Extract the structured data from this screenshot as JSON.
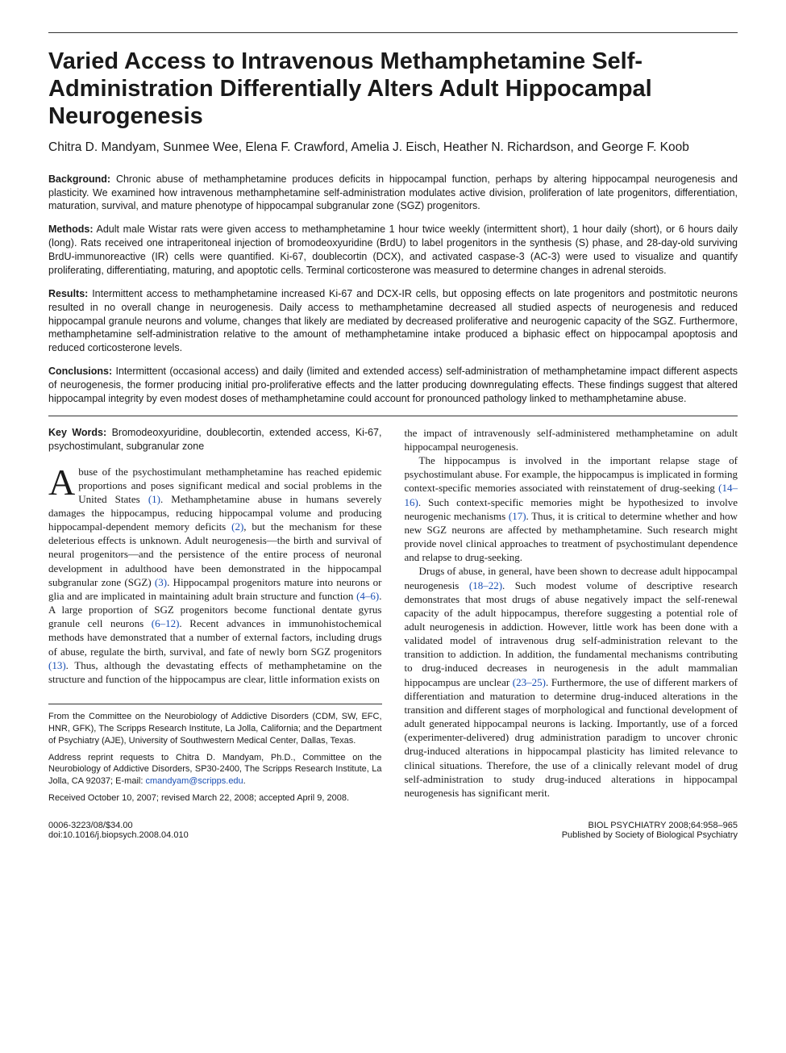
{
  "colors": {
    "text": "#1a1a1a",
    "background": "#ffffff",
    "link": "#1a4fb3",
    "rule": "#333333"
  },
  "typography": {
    "title_family": "Arial, Helvetica, sans-serif",
    "title_size_pt": 22,
    "title_weight": 700,
    "body_family": "Georgia, 'Times New Roman', serif",
    "body_size_pt": 10,
    "abstract_family": "Arial, Helvetica, sans-serif",
    "abstract_size_pt": 9.5
  },
  "title": "Varied Access to Intravenous Methamphetamine Self-Administration Differentially Alters Adult Hippocampal Neurogenesis",
  "authors": "Chitra D. Mandyam, Sunmee Wee, Elena F. Crawford, Amelia J. Eisch, Heather N. Richardson, and George F. Koob",
  "abstract": {
    "background": {
      "label": "Background:",
      "text": "Chronic abuse of methamphetamine produces deficits in hippocampal function, perhaps by altering hippocampal neurogenesis and plasticity. We examined how intravenous methamphetamine self-administration modulates active division, proliferation of late progenitors, differentiation, maturation, survival, and mature phenotype of hippocampal subgranular zone (SGZ) progenitors."
    },
    "methods": {
      "label": "Methods:",
      "text": "Adult male Wistar rats were given access to methamphetamine 1 hour twice weekly (intermittent short), 1 hour daily (short), or 6 hours daily (long). Rats received one intraperitoneal injection of bromodeoxyuridine (BrdU) to label progenitors in the synthesis (S) phase, and 28-day-old surviving BrdU-immunoreactive (IR) cells were quantified. Ki-67, doublecortin (DCX), and activated caspase-3 (AC-3) were used to visualize and quantify proliferating, differentiating, maturing, and apoptotic cells. Terminal corticosterone was measured to determine changes in adrenal steroids."
    },
    "results": {
      "label": "Results:",
      "text": "Intermittent access to methamphetamine increased Ki-67 and DCX-IR cells, but opposing effects on late progenitors and postmitotic neurons resulted in no overall change in neurogenesis. Daily access to methamphetamine decreased all studied aspects of neurogenesis and reduced hippocampal granule neurons and volume, changes that likely are mediated by decreased proliferative and neurogenic capacity of the SGZ. Furthermore, methamphetamine self-administration relative to the amount of methamphetamine intake produced a biphasic effect on hippocampal apoptosis and reduced corticosterone levels."
    },
    "conclusions": {
      "label": "Conclusions:",
      "text": "Intermittent (occasional access) and daily (limited and extended access) self-administration of methamphetamine impact different aspects of neurogenesis, the former producing initial pro-proliferative effects and the latter producing downregulating effects. These findings suggest that altered hippocampal integrity by even modest doses of methamphetamine could account for pronounced pathology linked to methamphetamine abuse."
    }
  },
  "keywords": {
    "label": "Key Words:",
    "text": "Bromodeoxyuridine, doublecortin, extended access, Ki-67, psychostimulant, subgranular zone"
  },
  "body": {
    "col1": {
      "dropcap": "A",
      "p1_after_cap": "buse of the psychostimulant methamphetamine has reached epidemic proportions and poses significant medical and social problems in the United States ",
      "p1_ref1": "(1)",
      "p1_cont": ". Methamphetamine abuse in humans severely damages the hippocampus, reducing hippocampal volume and producing hippocampal-dependent memory deficits ",
      "p1_ref2": "(2)",
      "p1_cont2": ", but the mechanism for these deleterious effects is unknown. Adult neurogenesis—the birth and survival of neural progenitors—and the persistence of the entire process of neuronal development in adulthood have been demonstrated in the hippocampal subgranular zone (SGZ) ",
      "p1_ref3": "(3)",
      "p1_cont3": ". Hippocampal progenitors mature into neurons or glia and are implicated in maintaining adult brain structure and function ",
      "p1_ref4": "(4–6)",
      "p1_cont4": ". A large proportion of SGZ progenitors become functional dentate gyrus granule cell neurons ",
      "p1_ref5": "(6–12)",
      "p1_cont5": ". Recent advances in immunohistochemical methods have demonstrated that a number of external factors, including drugs of abuse, regulate the birth, survival, and fate of newly born SGZ progenitors ",
      "p1_ref6": "(13)",
      "p1_cont6": ". Thus, although the devastating effects of methamphetamine on the structure and function of the hippocampus are clear, little information exists on"
    },
    "col2": {
      "p1": "the impact of intravenously self-administered methamphetamine on adult hippocampal neurogenesis.",
      "p2a": "The hippocampus is involved in the important relapse stage of psychostimulant abuse. For example, the hippocampus is implicated in forming context-specific memories associated with reinstatement of drug-seeking ",
      "p2_ref1": "(14–16)",
      "p2b": ". Such context-specific memories might be hypothesized to involve neurogenic mechanisms ",
      "p2_ref2": "(17)",
      "p2c": ". Thus, it is critical to determine whether and how new SGZ neurons are affected by methamphetamine. Such research might provide novel clinical approaches to treatment of psychostimulant dependence and relapse to drug-seeking.",
      "p3a": "Drugs of abuse, in general, have been shown to decrease adult hippocampal neurogenesis ",
      "p3_ref1": "(18–22)",
      "p3b": ". Such modest volume of descriptive research demonstrates that most drugs of abuse negatively impact the self-renewal capacity of the adult hippocampus, therefore suggesting a potential role of adult neurogenesis in addiction. However, little work has been done with a validated model of intravenous drug self-administration relevant to the transition to addiction. In addition, the fundamental mechanisms contributing to drug-induced decreases in neurogenesis in the adult mammalian hippocampus are unclear ",
      "p3_ref2": "(23–25)",
      "p3c": ". Furthermore, the use of different markers of differentiation and maturation to determine drug-induced alterations in the transition and different stages of morphological and functional development of adult generated hippocampal neurons is lacking. Importantly, use of a forced (experimenter-delivered) drug administration paradigm to uncover chronic drug-induced alterations in hippocampal plasticity has limited relevance to clinical situations. Therefore, the use of a clinically relevant model of drug self-administration to study drug-induced alterations in hippocampal neurogenesis has significant merit."
    }
  },
  "footnotes": {
    "affiliation": "From the Committee on the Neurobiology of Addictive Disorders (CDM, SW, EFC, HNR, GFK), The Scripps Research Institute, La Jolla, California; and the Department of Psychiatry (AJE), University of Southwestern Medical Center, Dallas, Texas.",
    "correspondence_pre": "Address reprint requests to Chitra D. Mandyam, Ph.D., Committee on the Neurobiology of Addictive Disorders, SP30-2400, The Scripps Research Institute, La Jolla, CA 92037; E-mail: ",
    "correspondence_email": "cmandyam@scripps.edu",
    "correspondence_post": ".",
    "received": "Received October 10, 2007; revised March 22, 2008; accepted April 9, 2008."
  },
  "footer": {
    "left_line1": "0006-3223/08/$34.00",
    "left_line2": "doi:10.1016/j.biopsych.2008.04.010",
    "right_line1": "BIOL PSYCHIATRY 2008;64:958–965",
    "right_line2": "Published by Society of Biological Psychiatry"
  }
}
